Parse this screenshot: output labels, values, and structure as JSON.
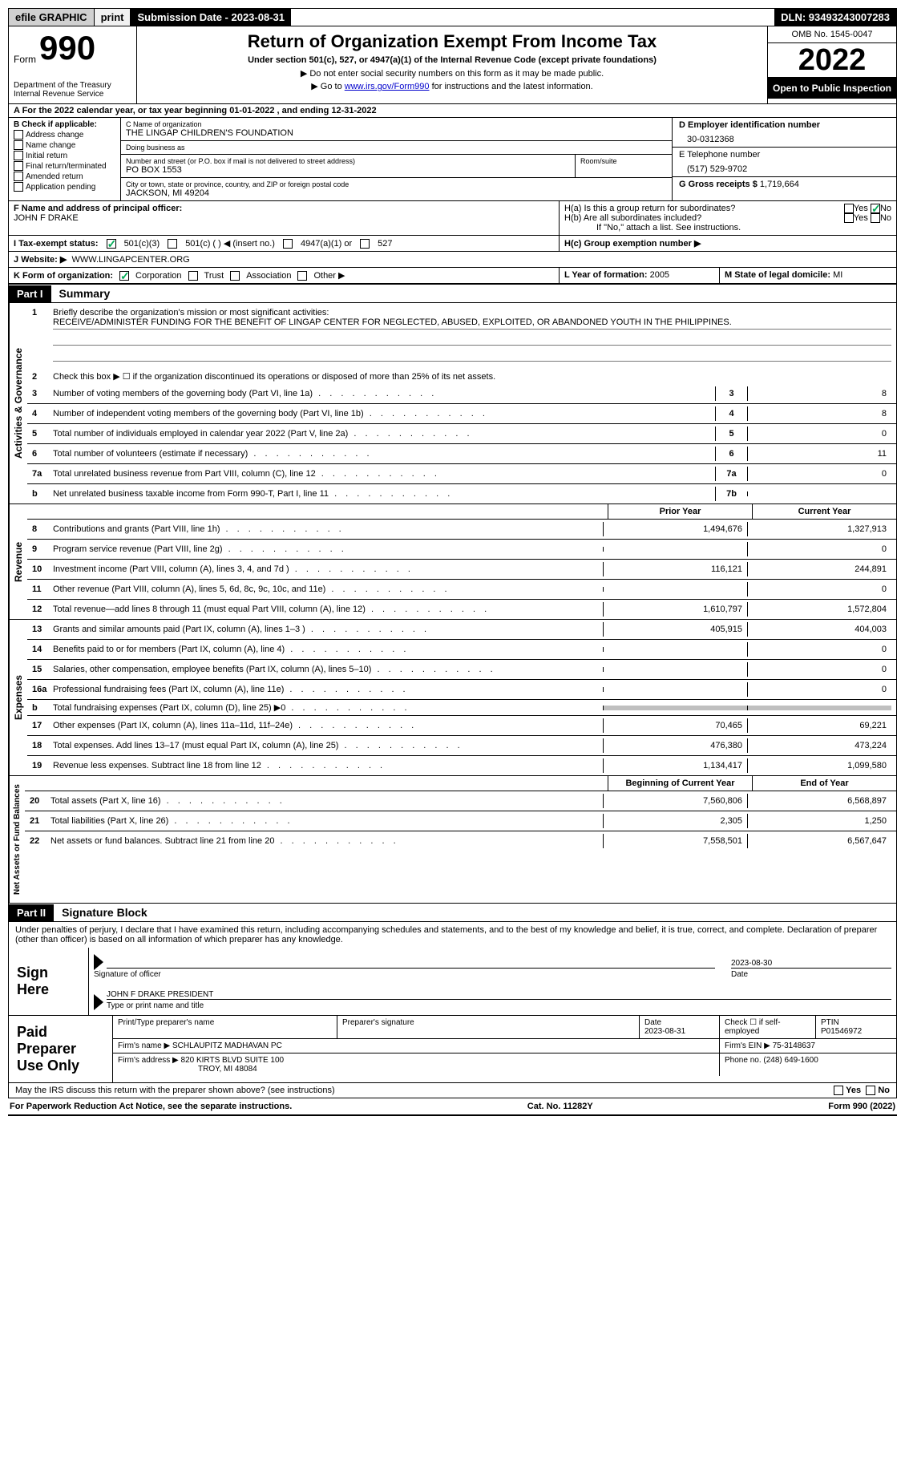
{
  "topbar": {
    "efile": "efile GRAPHIC",
    "print": "print",
    "submission": "Submission Date - 2023-08-31",
    "dln": "DLN: 93493243007283"
  },
  "header": {
    "form_word": "Form",
    "form_num": "990",
    "dept": "Department of the Treasury Internal Revenue Service",
    "title": "Return of Organization Exempt From Income Tax",
    "subtitle": "Under section 501(c), 527, or 4947(a)(1) of the Internal Revenue Code (except private foundations)",
    "note1": "Do not enter social security numbers on this form as it may be made public.",
    "note2_pre": "Go to ",
    "note2_link": "www.irs.gov/Form990",
    "note2_post": " for instructions and the latest information.",
    "omb": "OMB No. 1545-0047",
    "year": "2022",
    "open": "Open to Public Inspection"
  },
  "rowA": "A For the 2022 calendar year, or tax year beginning 01-01-2022    , and ending 12-31-2022",
  "sectionB": {
    "title": "B Check if applicable:",
    "items": [
      "Address change",
      "Name change",
      "Initial return",
      "Final return/terminated",
      "Amended return",
      "Application pending"
    ]
  },
  "sectionC": {
    "name_label": "C Name of organization",
    "name": "THE LINGAP CHILDREN'S FOUNDATION",
    "dba_label": "Doing business as",
    "dba": "",
    "addr_label": "Number and street (or P.O. box if mail is not delivered to street address)",
    "room_label": "Room/suite",
    "addr": "PO BOX 1553",
    "city_label": "City or town, state or province, country, and ZIP or foreign postal code",
    "city": "JACKSON, MI  49204"
  },
  "sectionD": {
    "ein_label": "D Employer identification number",
    "ein": "30-0312368",
    "phone_label": "E Telephone number",
    "phone": "(517) 529-9702",
    "gross_label": "G Gross receipts $",
    "gross": "1,719,664"
  },
  "sectionF": {
    "label": "F  Name and address of principal officer:",
    "name": "JOHN F DRAKE"
  },
  "sectionH": {
    "a_label": "H(a)  Is this a group return for subordinates?",
    "b_label": "H(b)  Are all subordinates included?",
    "b_note": "If \"No,\" attach a list. See instructions.",
    "c_label": "H(c)  Group exemption number ▶"
  },
  "sectionI": {
    "label": "I    Tax-exempt status:",
    "opt1": "501(c)(3)",
    "opt2": "501(c) (  ) ◀ (insert no.)",
    "opt3": "4947(a)(1) or",
    "opt4": "527"
  },
  "sectionJ": {
    "label": "J   Website: ▶",
    "value": "WWW.LINGAPCENTER.ORG"
  },
  "sectionK": {
    "label": "K Form of organization:",
    "opts": [
      "Corporation",
      "Trust",
      "Association",
      "Other ▶"
    ]
  },
  "sectionL": {
    "label": "L Year of formation:",
    "value": "2005"
  },
  "sectionM": {
    "label": "M State of legal domicile:",
    "value": "MI"
  },
  "part1": {
    "tag": "Part I",
    "title": "Summary",
    "line1_label": "Briefly describe the organization's mission or most significant activities:",
    "line1_text": "RECEIVE/ADMINISTER FUNDING FOR THE BENEFIT OF LINGAP CENTER FOR NEGLECTED, ABUSED, EXPLOITED, OR ABANDONED YOUTH IN THE PHILIPPINES.",
    "line2": "Check this box ▶ ☐ if the organization discontinued its operations or disposed of more than 25% of its net assets.",
    "vlabels": {
      "ag": "Activities & Governance",
      "rev": "Revenue",
      "exp": "Expenses",
      "na": "Net Assets or Fund Balances"
    },
    "ag_lines": [
      {
        "n": "3",
        "t": "Number of voting members of the governing body (Part VI, line 1a)",
        "box": "3",
        "v": "8"
      },
      {
        "n": "4",
        "t": "Number of independent voting members of the governing body (Part VI, line 1b)",
        "box": "4",
        "v": "8"
      },
      {
        "n": "5",
        "t": "Total number of individuals employed in calendar year 2022 (Part V, line 2a)",
        "box": "5",
        "v": "0"
      },
      {
        "n": "6",
        "t": "Total number of volunteers (estimate if necessary)",
        "box": "6",
        "v": "11"
      },
      {
        "n": "7a",
        "t": "Total unrelated business revenue from Part VIII, column (C), line 12",
        "box": "7a",
        "v": "0"
      },
      {
        "n": "b",
        "t": "Net unrelated business taxable income from Form 990-T, Part I, line 11",
        "box": "7b",
        "v": ""
      }
    ],
    "col_headers": {
      "prior": "Prior Year",
      "current": "Current Year",
      "boy": "Beginning of Current Year",
      "eoy": "End of Year"
    },
    "rev_lines": [
      {
        "n": "8",
        "t": "Contributions and grants (Part VIII, line 1h)",
        "p": "1,494,676",
        "c": "1,327,913"
      },
      {
        "n": "9",
        "t": "Program service revenue (Part VIII, line 2g)",
        "p": "",
        "c": "0"
      },
      {
        "n": "10",
        "t": "Investment income (Part VIII, column (A), lines 3, 4, and 7d )",
        "p": "116,121",
        "c": "244,891"
      },
      {
        "n": "11",
        "t": "Other revenue (Part VIII, column (A), lines 5, 6d, 8c, 9c, 10c, and 11e)",
        "p": "",
        "c": "0"
      },
      {
        "n": "12",
        "t": "Total revenue—add lines 8 through 11 (must equal Part VIII, column (A), line 12)",
        "p": "1,610,797",
        "c": "1,572,804"
      }
    ],
    "exp_lines": [
      {
        "n": "13",
        "t": "Grants and similar amounts paid (Part IX, column (A), lines 1–3 )",
        "p": "405,915",
        "c": "404,003"
      },
      {
        "n": "14",
        "t": "Benefits paid to or for members (Part IX, column (A), line 4)",
        "p": "",
        "c": "0"
      },
      {
        "n": "15",
        "t": "Salaries, other compensation, employee benefits (Part IX, column (A), lines 5–10)",
        "p": "",
        "c": "0"
      },
      {
        "n": "16a",
        "t": "Professional fundraising fees (Part IX, column (A), line 11e)",
        "p": "",
        "c": "0"
      },
      {
        "n": "b",
        "t": "Total fundraising expenses (Part IX, column (D), line 25) ▶0",
        "p": "GRAY",
        "c": "GRAY"
      },
      {
        "n": "17",
        "t": "Other expenses (Part IX, column (A), lines 11a–11d, 11f–24e)",
        "p": "70,465",
        "c": "69,221"
      },
      {
        "n": "18",
        "t": "Total expenses. Add lines 13–17 (must equal Part IX, column (A), line 25)",
        "p": "476,380",
        "c": "473,224"
      },
      {
        "n": "19",
        "t": "Revenue less expenses. Subtract line 18 from line 12",
        "p": "1,134,417",
        "c": "1,099,580"
      }
    ],
    "na_lines": [
      {
        "n": "20",
        "t": "Total assets (Part X, line 16)",
        "p": "7,560,806",
        "c": "6,568,897"
      },
      {
        "n": "21",
        "t": "Total liabilities (Part X, line 26)",
        "p": "2,305",
        "c": "1,250"
      },
      {
        "n": "22",
        "t": "Net assets or fund balances. Subtract line 21 from line 20",
        "p": "7,558,501",
        "c": "6,567,647"
      }
    ]
  },
  "part2": {
    "tag": "Part II",
    "title": "Signature Block",
    "penalty": "Under penalties of perjury, I declare that I have examined this return, including accompanying schedules and statements, and to the best of my knowledge and belief, it is true, correct, and complete. Declaration of preparer (other than officer) is based on all information of which preparer has any knowledge.",
    "sign_here": "Sign Here",
    "sig_officer": "Signature of officer",
    "sig_date": "2023-08-30",
    "date_label": "Date",
    "name_title": "JOHN F DRAKE  PRESIDENT",
    "name_label": "Type or print name and title",
    "paid": "Paid Preparer Use Only",
    "prep_name_label": "Print/Type preparer's name",
    "prep_sig_label": "Preparer's signature",
    "prep_date_label": "Date",
    "prep_date": "2023-08-31",
    "check_self": "Check ☐ if self-employed",
    "ptin_label": "PTIN",
    "ptin": "P01546972",
    "firm_name_label": "Firm's name     ▶",
    "firm_name": "SCHLAUPITZ MADHAVAN PC",
    "firm_ein_label": "Firm's EIN ▶",
    "firm_ein": "75-3148637",
    "firm_addr_label": "Firm's address ▶",
    "firm_addr1": "820 KIRTS BLVD SUITE 100",
    "firm_addr2": "TROY, MI  48084",
    "firm_phone_label": "Phone no.",
    "firm_phone": "(248) 649-1600",
    "may_irs": "May the IRS discuss this return with the preparer shown above? (see instructions)"
  },
  "footer": {
    "left": "For Paperwork Reduction Act Notice, see the separate instructions.",
    "center": "Cat. No. 11282Y",
    "right": "Form 990 (2022)"
  },
  "yesno": {
    "yes": "Yes",
    "no": "No"
  }
}
